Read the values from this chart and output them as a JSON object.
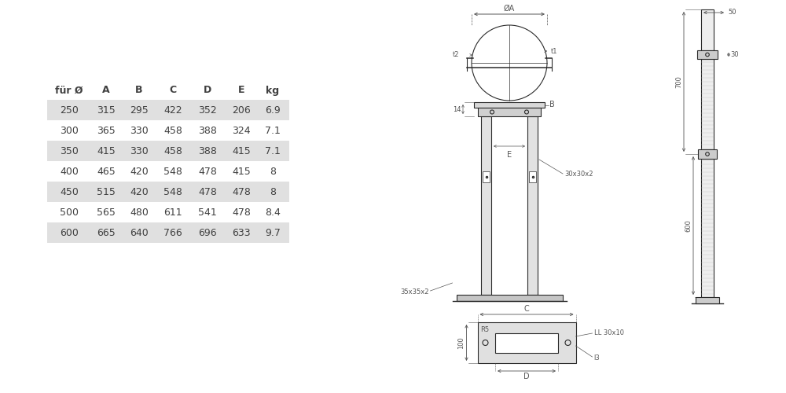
{
  "table_headers": [
    "für Ø",
    "A",
    "B",
    "C",
    "D",
    "E",
    "kg"
  ],
  "table_rows": [
    [
      "250",
      "315",
      "295",
      "422",
      "352",
      "206",
      "6.9"
    ],
    [
      "300",
      "365",
      "330",
      "458",
      "388",
      "324",
      "7.1"
    ],
    [
      "350",
      "415",
      "330",
      "458",
      "388",
      "415",
      "7.1"
    ],
    [
      "400",
      "465",
      "420",
      "548",
      "478",
      "415",
      "8"
    ],
    [
      "450",
      "515",
      "420",
      "548",
      "478",
      "478",
      "8"
    ],
    [
      "500",
      "565",
      "480",
      "611",
      "541",
      "478",
      "8.4"
    ],
    [
      "600",
      "665",
      "640",
      "766",
      "696",
      "633",
      "9.7"
    ]
  ],
  "shaded_rows": [
    0,
    2,
    4,
    6
  ],
  "bg_color": "#ffffff",
  "table_bg": "#e0e0e0",
  "text_color": "#404040",
  "line_color": "#2a2a2a",
  "dim_color": "#555555"
}
